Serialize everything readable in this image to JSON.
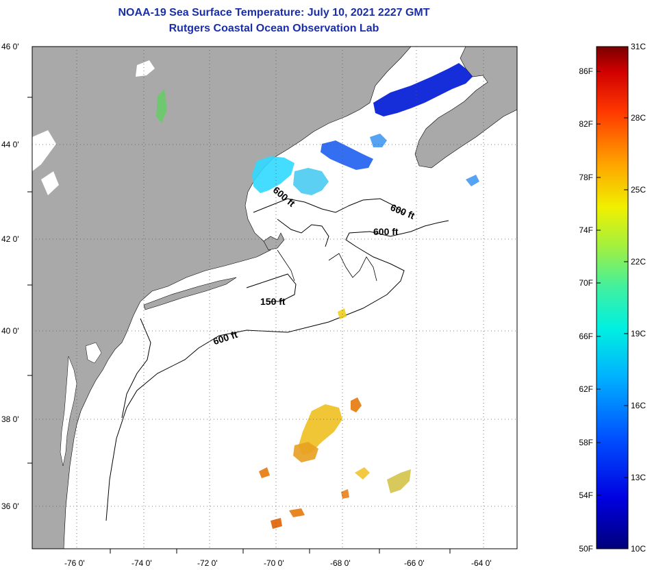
{
  "title": {
    "line1": "NOAA-19 Sea Surface Temperature:  July 10, 2021 2227 GMT",
    "line2": "Rutgers Coastal Ocean Observation Lab"
  },
  "map": {
    "lat_labels": [
      "46 0'",
      "44 0'",
      "42 0'",
      "40 0'",
      "38 0'",
      "36 0'"
    ],
    "lon_labels": [
      "-76 0'",
      "-74 0'",
      "-72 0'",
      "-70 0'",
      "-68 0'",
      "-66 0'",
      "-64 0'"
    ],
    "isobaths": [
      {
        "id": "a",
        "text": "600 ft"
      },
      {
        "id": "b",
        "text": "600 ft"
      },
      {
        "id": "c",
        "text": "600 ft"
      },
      {
        "id": "d",
        "text": "150 ft"
      },
      {
        "id": "e",
        "text": "600 ft"
      }
    ],
    "colors": {
      "land": "#a9a9a9",
      "ocean": "#ffffff",
      "title": "#1a2ea8",
      "cold": "#0a22d8",
      "cyan": "#30d8ff",
      "warm": "#f0c020",
      "orange": "#e88018"
    }
  },
  "colorbar": {
    "fahrenheit": [
      "86F",
      "82F",
      "78F",
      "74F",
      "70F",
      "66F",
      "62F",
      "58F",
      "54F",
      "50F"
    ],
    "celsius": [
      "31C",
      "28C",
      "25C",
      "22C",
      "19C",
      "16C",
      "13C",
      "10C"
    ]
  }
}
